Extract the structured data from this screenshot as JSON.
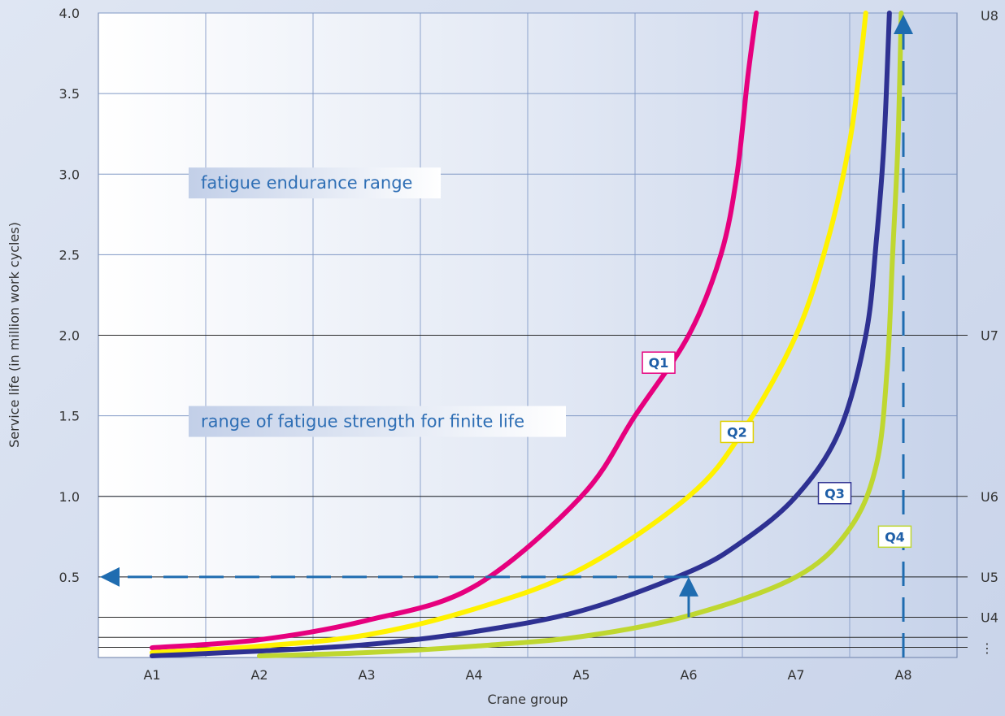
{
  "chart_data": {
    "type": "line",
    "xlabel": "Crane group",
    "ylabel": "Service life (in million work cycles)",
    "x_categories": [
      "A1",
      "A2",
      "A3",
      "A4",
      "A5",
      "A6",
      "A7",
      "A8"
    ],
    "y_ticks": [
      "0.5",
      "1.0",
      "1.5",
      "2.0",
      "2.5",
      "3.0",
      "3.5",
      "4.0"
    ],
    "ylim": [
      0,
      4.0
    ],
    "right_labels": [
      {
        "label": "U8",
        "y": 4.0
      },
      {
        "label": "U7",
        "y": 2.0
      },
      {
        "label": "U6",
        "y": 1.0
      },
      {
        "label": "U5",
        "y": 0.5
      },
      {
        "label": "U4",
        "y": 0.25
      },
      {
        "label": "⋮",
        "y": 0.06
      }
    ],
    "dark_lines_y": [
      2.0,
      1.0,
      0.5,
      0.25,
      0.125,
      0.063
    ],
    "ranges": [
      {
        "label": "fatigue endurance range",
        "y": 2.95
      },
      {
        "label": "range of fatigue strength for finite life",
        "y": 1.47
      }
    ],
    "series": [
      {
        "name": "Q1",
        "color": "#e6007e",
        "points": [
          [
            0.0,
            0.06
          ],
          [
            1.0,
            0.11
          ],
          [
            2.0,
            0.23
          ],
          [
            3.0,
            0.44
          ],
          [
            4.0,
            1.0
          ],
          [
            4.5,
            1.5
          ],
          [
            5.0,
            2.0
          ],
          [
            5.3,
            2.5
          ],
          [
            5.45,
            3.0
          ],
          [
            5.55,
            3.6
          ],
          [
            5.63,
            4.0
          ]
        ]
      },
      {
        "name": "Q2",
        "color": "#fff200",
        "points": [
          [
            0.0,
            0.03
          ],
          [
            1.0,
            0.07
          ],
          [
            2.0,
            0.14
          ],
          [
            3.0,
            0.3
          ],
          [
            4.0,
            0.55
          ],
          [
            5.0,
            1.0
          ],
          [
            5.5,
            1.4
          ],
          [
            6.0,
            2.0
          ],
          [
            6.3,
            2.6
          ],
          [
            6.5,
            3.2
          ],
          [
            6.6,
            3.7
          ],
          [
            6.65,
            4.0
          ]
        ]
      },
      {
        "name": "Q3",
        "color": "#2e3192",
        "points": [
          [
            0.0,
            0.01
          ],
          [
            1.0,
            0.04
          ],
          [
            2.0,
            0.08
          ],
          [
            3.0,
            0.16
          ],
          [
            4.0,
            0.29
          ],
          [
            5.0,
            0.53
          ],
          [
            5.5,
            0.72
          ],
          [
            6.0,
            1.0
          ],
          [
            6.4,
            1.4
          ],
          [
            6.65,
            2.0
          ],
          [
            6.75,
            2.6
          ],
          [
            6.82,
            3.2
          ],
          [
            6.87,
            4.0
          ]
        ]
      },
      {
        "name": "Q4",
        "color": "#bfd730",
        "points": [
          [
            1.0,
            0.01
          ],
          [
            2.0,
            0.03
          ],
          [
            3.0,
            0.07
          ],
          [
            4.0,
            0.13
          ],
          [
            5.0,
            0.26
          ],
          [
            6.0,
            0.5
          ],
          [
            6.5,
            0.8
          ],
          [
            6.75,
            1.2
          ],
          [
            6.85,
            1.8
          ],
          [
            6.9,
            2.5
          ],
          [
            6.95,
            3.2
          ],
          [
            6.98,
            4.0
          ]
        ]
      }
    ],
    "series_labels": [
      {
        "name": "Q1",
        "x": 4.72,
        "y": 1.83,
        "border": "#e6007e"
      },
      {
        "name": "Q2",
        "x": 5.45,
        "y": 1.4,
        "border": "#e0d000"
      },
      {
        "name": "Q3",
        "x": 6.36,
        "y": 1.02,
        "border": "#2e3192"
      },
      {
        "name": "Q4",
        "x": 6.92,
        "y": 0.75,
        "border": "#bfd730"
      }
    ],
    "arrows": [
      {
        "from": [
          5.0,
          0.25
        ],
        "to": [
          5.0,
          0.5
        ],
        "dashed": false
      },
      {
        "from": [
          5.0,
          0.5
        ],
        "to": [
          -0.5,
          0.5
        ],
        "dashed": true
      },
      {
        "from": [
          7.0,
          0.0
        ],
        "to": [
          7.0,
          4.0
        ],
        "dashed": true
      }
    ]
  }
}
